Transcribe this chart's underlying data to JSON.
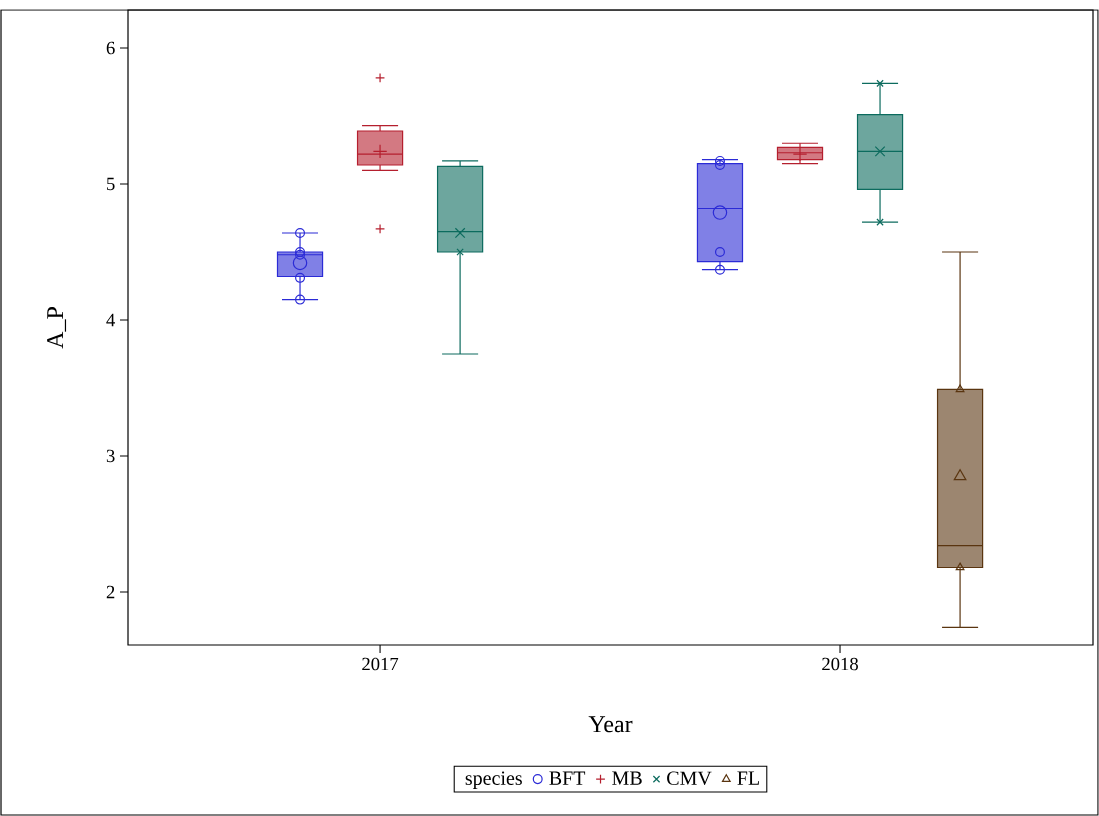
{
  "chart_data": {
    "type": "box",
    "xlabel": "Year",
    "ylabel": "A_P",
    "legend_title": "species",
    "categories": [
      "2017",
      "2018"
    ],
    "ylim": [
      1.61,
      6.28
    ],
    "yticks": [
      2,
      3,
      4,
      5,
      6
    ],
    "legend": "bottom",
    "series": [
      {
        "name": "BFT",
        "color": "#2b2bd6",
        "marker": "circle",
        "boxes": [
          {
            "low": 4.15,
            "q1": 4.32,
            "median": 4.48,
            "q3": 4.5,
            "high": 4.64,
            "mean": 4.42,
            "outliers": [
              4.64,
              4.5,
              4.48,
              4.31,
              4.15
            ]
          },
          {
            "low": 4.37,
            "q1": 4.43,
            "median": 4.82,
            "q3": 5.15,
            "high": 5.18,
            "mean": 4.79,
            "outliers": [
              5.17,
              5.14,
              4.5,
              4.37
            ]
          }
        ]
      },
      {
        "name": "MB",
        "color": "#b51f2e",
        "marker": "plus",
        "boxes": [
          {
            "low": 5.1,
            "q1": 5.14,
            "median": 5.22,
            "q3": 5.39,
            "high": 5.43,
            "mean": 5.24,
            "outliers": [
              5.78,
              4.67
            ]
          },
          {
            "low": 5.15,
            "q1": 5.18,
            "median": 5.23,
            "q3": 5.27,
            "high": 5.3,
            "mean": 5.22
          }
        ]
      },
      {
        "name": "CMV",
        "color": "#0c6b5e",
        "marker": "cross",
        "boxes": [
          {
            "low": 3.75,
            "q1": 4.5,
            "median": 4.65,
            "q3": 5.13,
            "high": 5.17,
            "mean": 4.64,
            "outliers": [
              4.5
            ]
          },
          {
            "low": 4.72,
            "q1": 4.96,
            "median": 5.24,
            "q3": 5.51,
            "high": 5.74,
            "mean": 5.24,
            "outliers": [
              5.74,
              4.72
            ]
          }
        ]
      },
      {
        "name": "FL",
        "color": "#5a3510",
        "marker": "triangle",
        "boxes": [
          null,
          {
            "low": 1.74,
            "q1": 2.18,
            "median": 2.34,
            "q3": 3.49,
            "high": 4.5,
            "mean": 2.85,
            "outliers": [
              3.49,
              2.18
            ]
          }
        ]
      }
    ]
  }
}
